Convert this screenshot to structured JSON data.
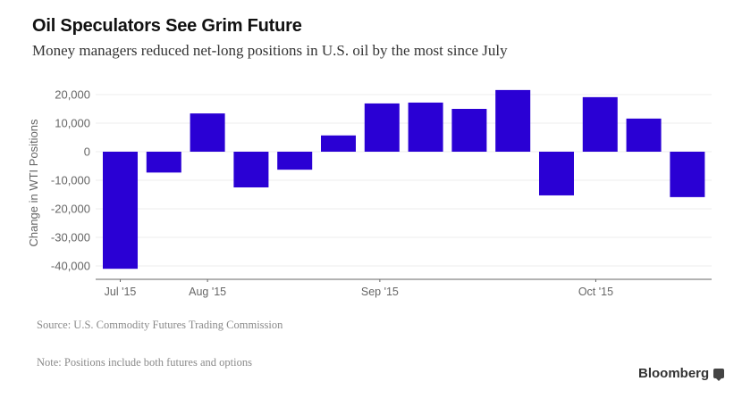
{
  "header": {
    "title": "Oil Speculators See Grim Future",
    "subtitle": "Money managers reduced net-long positions in U.S. oil by the most since July"
  },
  "footer": {
    "source": "Source: U.S. Commodity Futures Trading Commission",
    "note": "Note: Positions include both futures and options",
    "brand": "Bloomberg",
    "brand_icon": "bloomberg-speech-bubble-icon"
  },
  "colors": {
    "bar": "#2a00d4",
    "grid": "#eeeeee",
    "axis": "#666666"
  },
  "chart_data": {
    "type": "bar",
    "title": "Oil Speculators See Grim Future",
    "subtitle": "Money managers reduced net-long positions in U.S. oil by the most since July",
    "xlabel": "",
    "ylabel": "Change in WTI Positions",
    "ylim": [
      -40000,
      20000
    ],
    "yticks": [
      20000,
      10000,
      0,
      -10000,
      -20000,
      -30000,
      -40000
    ],
    "ytick_labels": [
      "20,000",
      "10,000",
      "0",
      "-10,000",
      "-20,000",
      "-30,000",
      "-40,000"
    ],
    "grid": true,
    "legend": "none",
    "frequency": "weekly",
    "x_tick_labels": [
      {
        "label": "Jul '15",
        "at_bar": 0.4
      },
      {
        "label": "Aug '15",
        "at_bar": 2.4
      },
      {
        "label": "Sep '15",
        "at_bar": 6.35
      },
      {
        "label": "Oct '15",
        "at_bar": 11.3
      }
    ],
    "series": [
      {
        "name": "Change in WTI Positions",
        "values": [
          -41000,
          -7300,
          13400,
          -12500,
          -6300,
          5700,
          16900,
          17200,
          15000,
          21600,
          -15300,
          19100,
          11600,
          -15900
        ]
      }
    ]
  }
}
